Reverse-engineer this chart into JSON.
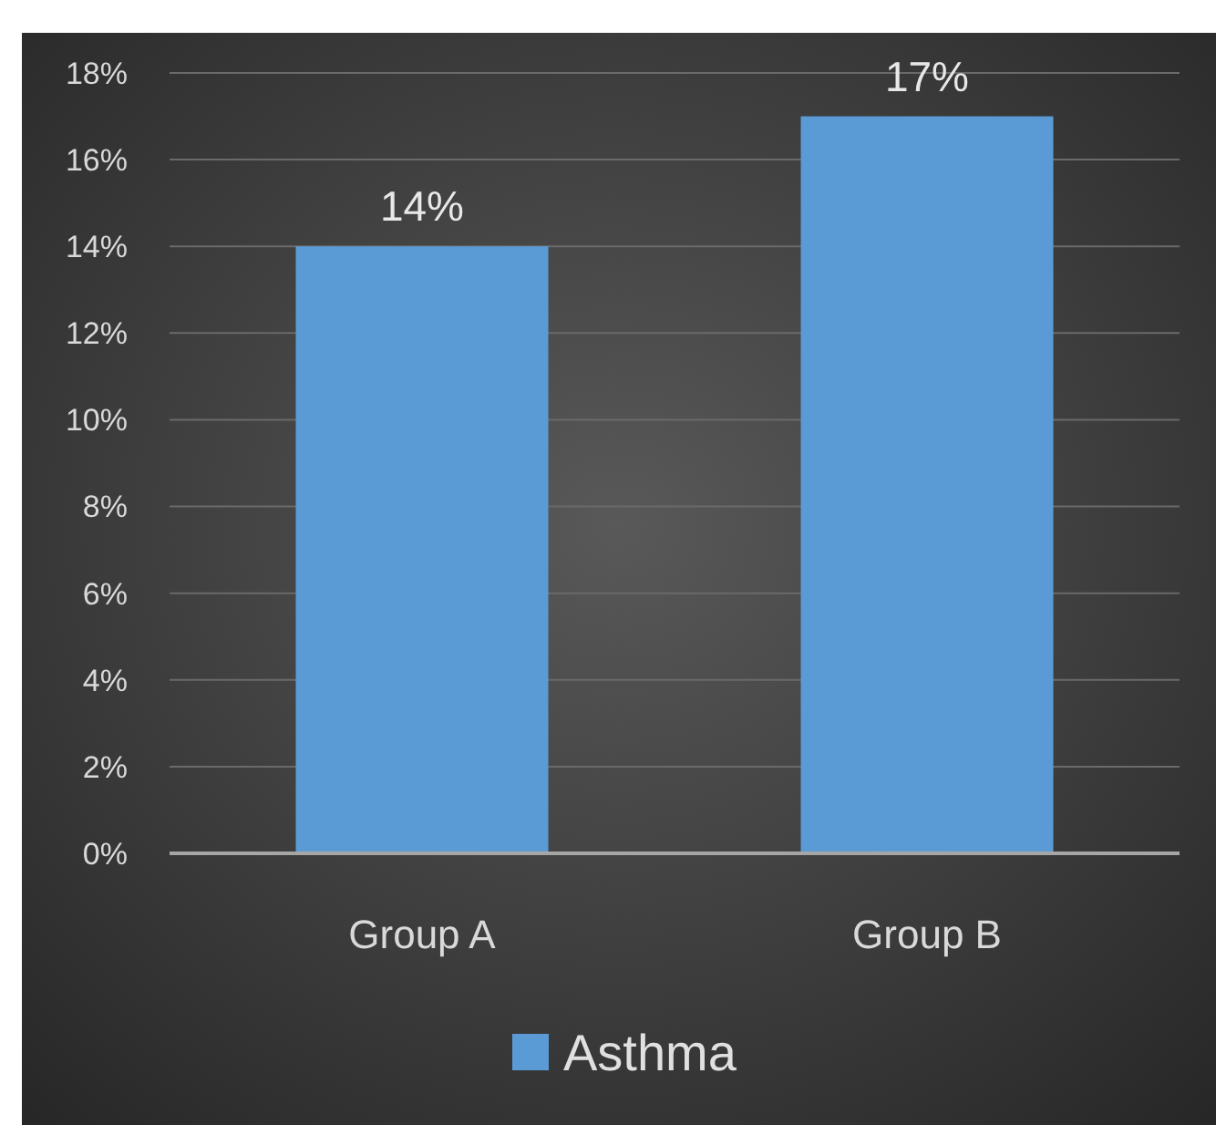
{
  "chart_data": {
    "type": "bar",
    "categories": [
      "Group A",
      "Group B"
    ],
    "series": [
      {
        "name": "Asthma",
        "color": "#5b9bd5",
        "values": [
          14,
          17
        ]
      }
    ],
    "value_labels": [
      "14%",
      "17%"
    ],
    "ylim": [
      0,
      18
    ],
    "yticks": [
      {
        "value": 0,
        "label": "0%"
      },
      {
        "value": 2,
        "label": "2%"
      },
      {
        "value": 4,
        "label": "4%"
      },
      {
        "value": 6,
        "label": "6%"
      },
      {
        "value": 8,
        "label": "8%"
      },
      {
        "value": 10,
        "label": "10%"
      },
      {
        "value": 12,
        "label": "12%"
      },
      {
        "value": 14,
        "label": "14%"
      },
      {
        "value": 16,
        "label": "16%"
      },
      {
        "value": 18,
        "label": "18%"
      }
    ],
    "grid": "y",
    "legend": "bottom"
  }
}
